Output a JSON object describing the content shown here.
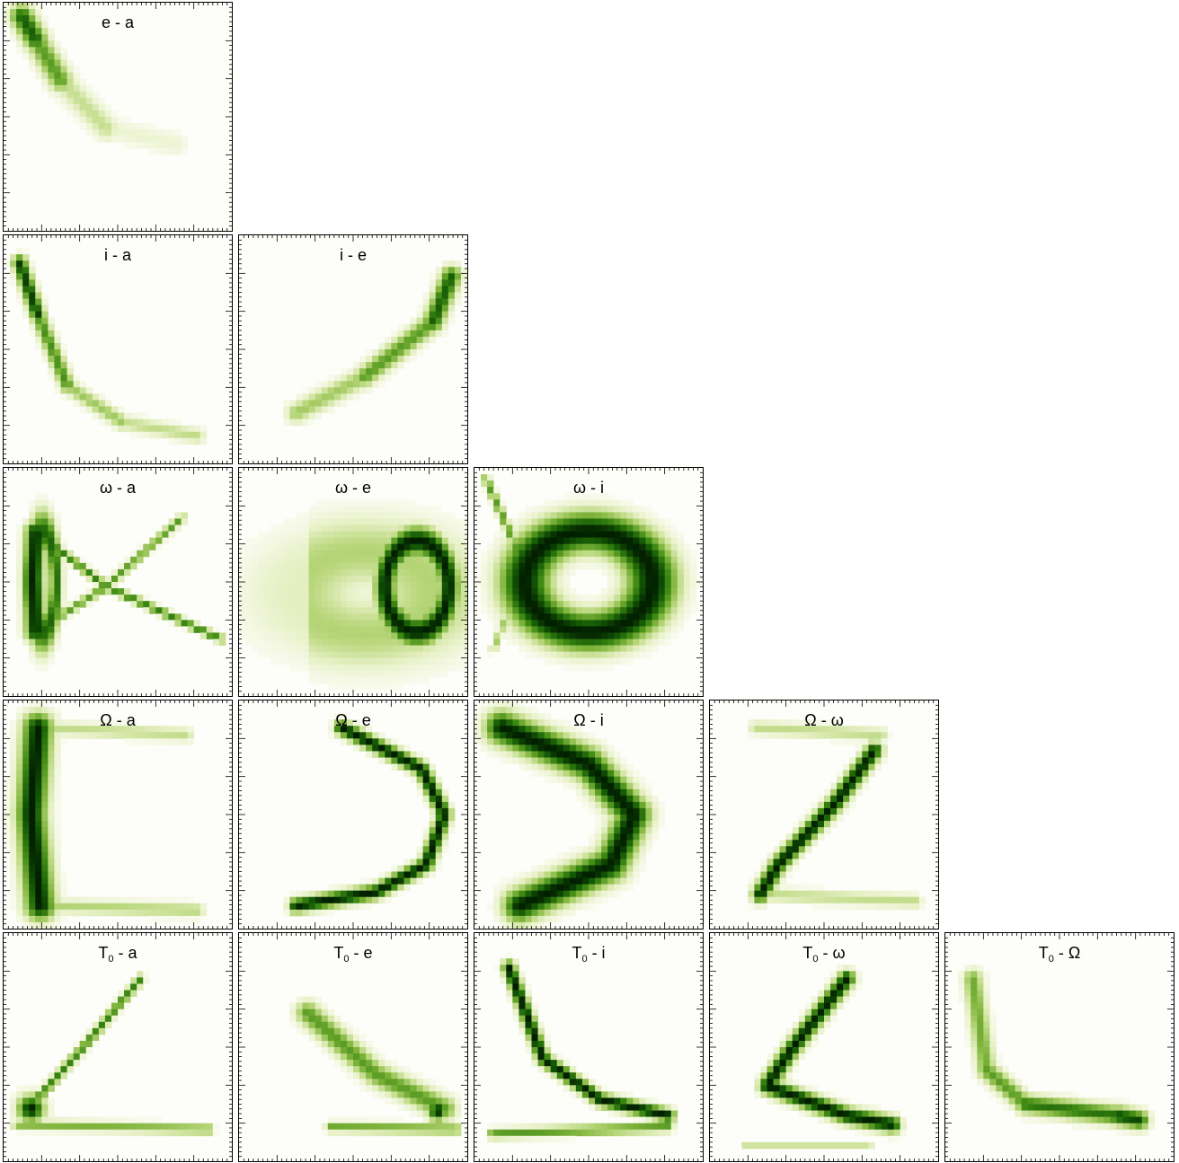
{
  "chart_data": {
    "type": "heatmap",
    "layout": "lower-triangle corner plot (5 x 5)",
    "colormap": [
      "#fdfdf7",
      "#e6f0c4",
      "#b9d77c",
      "#7fb43c",
      "#3f8a14",
      "#145a05",
      "#021f00"
    ],
    "panels": [
      {
        "row": 0,
        "col": 0,
        "title": "e - a",
        "y": "e",
        "x": "a",
        "sub": ""
      },
      {
        "row": 1,
        "col": 0,
        "title": "i - a",
        "y": "i",
        "x": "a",
        "sub": ""
      },
      {
        "row": 1,
        "col": 1,
        "title": "i - e",
        "y": "i",
        "x": "e",
        "sub": ""
      },
      {
        "row": 2,
        "col": 0,
        "title": "ω - a",
        "y": "ω",
        "x": "a",
        "sub": ""
      },
      {
        "row": 2,
        "col": 1,
        "title": "ω - e",
        "y": "ω",
        "x": "e",
        "sub": ""
      },
      {
        "row": 2,
        "col": 2,
        "title": "ω - i",
        "y": "ω",
        "x": "i",
        "sub": ""
      },
      {
        "row": 3,
        "col": 0,
        "title": "Ω - a",
        "y": "Ω",
        "x": "a",
        "sub": ""
      },
      {
        "row": 3,
        "col": 1,
        "title": "Ω - e",
        "y": "Ω",
        "x": "e",
        "sub": ""
      },
      {
        "row": 3,
        "col": 2,
        "title": "Ω - i",
        "y": "Ω",
        "x": "i",
        "sub": ""
      },
      {
        "row": 3,
        "col": 3,
        "title": "Ω - ω",
        "y": "Ω",
        "x": "ω",
        "sub": ""
      },
      {
        "row": 4,
        "col": 0,
        "title": "T0 - a",
        "y": "T",
        "x": "a",
        "sub": "0"
      },
      {
        "row": 4,
        "col": 1,
        "title": "T0 - e",
        "y": "T",
        "x": "e",
        "sub": "0"
      },
      {
        "row": 4,
        "col": 2,
        "title": "T0 - i",
        "y": "T",
        "x": "i",
        "sub": "0"
      },
      {
        "row": 4,
        "col": 3,
        "title": "T0 - ω",
        "y": "T",
        "x": "ω",
        "sub": "0"
      },
      {
        "row": 4,
        "col": 4,
        "title": "T0 - Ω",
        "y": "T",
        "x": "Ω",
        "sub": "0"
      }
    ]
  }
}
